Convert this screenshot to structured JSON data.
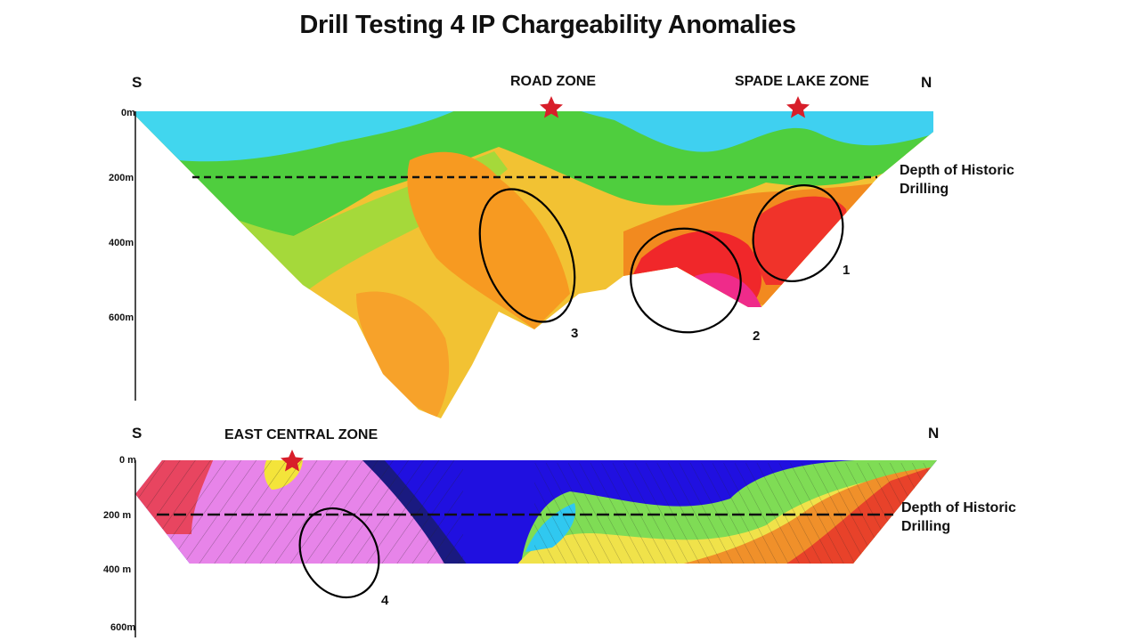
{
  "title": "Drill Testing 4 IP Chargeability Anomalies",
  "upper_section": {
    "south_label": "S",
    "north_label": "N",
    "zones": [
      "ROAD ZONE",
      "SPADE LAKE ZONE"
    ],
    "depth_ticks": [
      "0m",
      "200m",
      "400m",
      "600m"
    ],
    "historic_note_line1": "Depth of Historic",
    "historic_note_line2": "Drilling",
    "anomalies": [
      "1",
      "2",
      "3"
    ]
  },
  "lower_section": {
    "south_label": "S",
    "north_label": "N",
    "zones": [
      "EAST CENTRAL ZONE"
    ],
    "depth_ticks": [
      "0 m",
      "200 m",
      "400 m",
      "600m"
    ],
    "historic_note_line1": "Depth of Historic",
    "historic_note_line2": "Drilling",
    "anomalies": [
      "4"
    ]
  },
  "colors": {
    "star": "#d81e2a",
    "dashed_line": "#111111",
    "ellipse": "#000000"
  }
}
